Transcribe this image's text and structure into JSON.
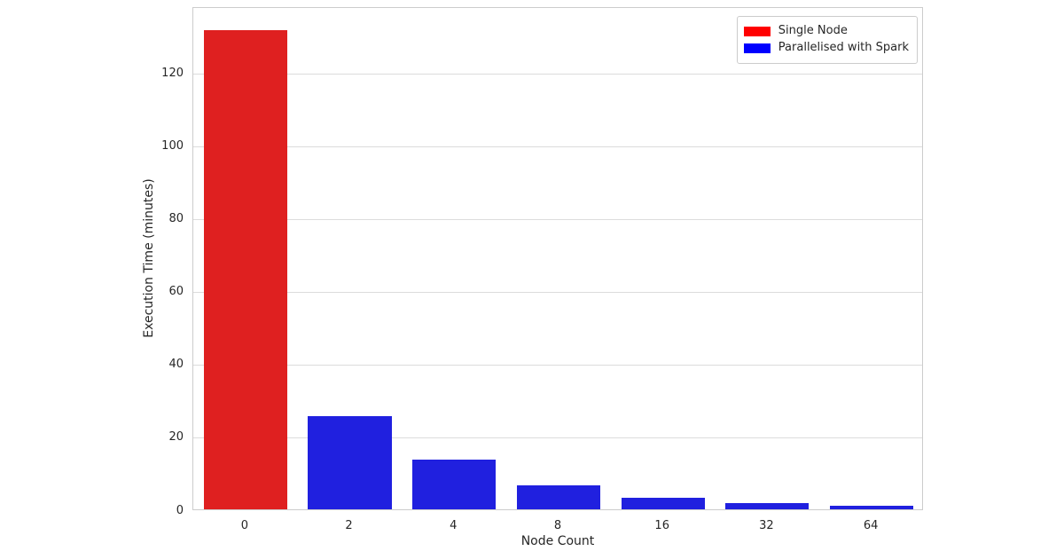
{
  "figure": {
    "background_color": "#ffffff",
    "grid_color": "#dcdcdc",
    "spine_color": "#cccccc",
    "text_color": "#262626"
  },
  "chart_data": {
    "type": "bar",
    "title": "",
    "xlabel": "Node Count",
    "ylabel": "Execution Time (minutes)",
    "categories": [
      "0",
      "2",
      "4",
      "8",
      "16",
      "32",
      "64"
    ],
    "series": [
      {
        "name": "Single Node",
        "legend_color": "#ff0000",
        "bar_color": "#df2020",
        "values": [
          131.5,
          null,
          null,
          null,
          null,
          null,
          null
        ]
      },
      {
        "name": "Parallelised with Spark",
        "legend_color": "#0000ff",
        "bar_color": "#2020df",
        "values": [
          null,
          25.6,
          13.6,
          6.5,
          3.2,
          1.7,
          1.0
        ]
      }
    ],
    "yticks": [
      0,
      20,
      40,
      60,
      80,
      100,
      120
    ],
    "ylim": [
      0,
      138.1
    ],
    "grid": true,
    "legend_position": "upper right",
    "bar_width_fraction": 0.8
  }
}
